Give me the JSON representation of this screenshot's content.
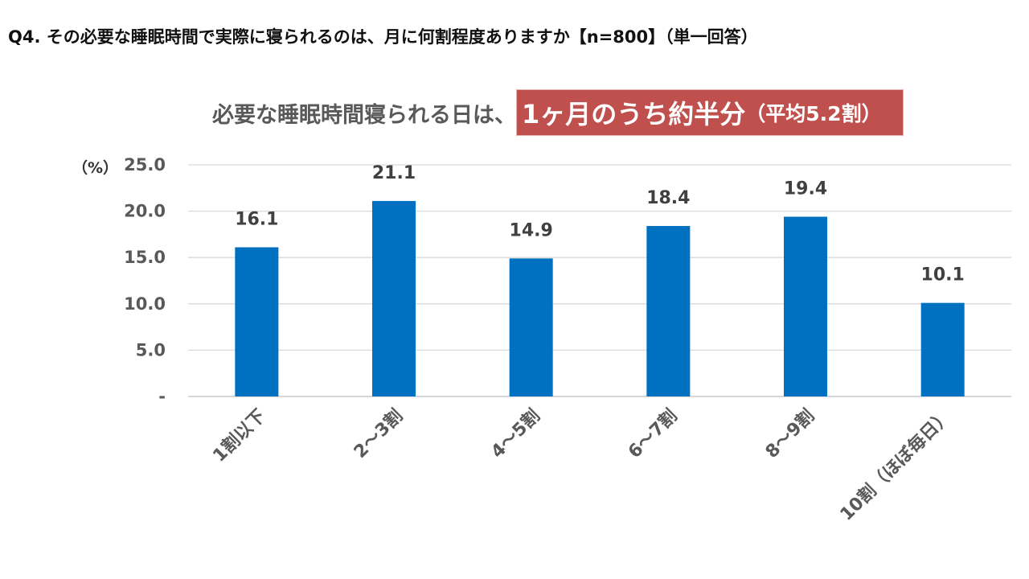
{
  "question": "Q4. その必要な睡眠時間で実際に寝られるのは、月に何割程度ありますか【n=800】（単一回答）",
  "headline": {
    "prefix": "必要な睡眠時間寝られる日は、",
    "highlight": "1ヶ月のうち約半分",
    "highlight_sub": "（平均5.2割）"
  },
  "colors": {
    "bar": "#0070c0",
    "highlight_bg": "#c0504d",
    "grid": "#d9d9d9"
  },
  "chart_data": {
    "type": "bar",
    "title": "必要な睡眠時間寝られる日は、1ヶ月のうち約半分（平均5.2割）",
    "ylabel": "（%）",
    "xlabel": "",
    "ylim": [
      0,
      25
    ],
    "yticks": [
      0,
      5,
      10,
      15,
      20,
      25
    ],
    "ytick_labels": [
      "-",
      "5.0",
      "10.0",
      "15.0",
      "20.0",
      "25.0"
    ],
    "grid": true,
    "categories": [
      "1割以下",
      "2～3割",
      "4～5割",
      "6～7割",
      "8～9割",
      "10割（ほぼ毎日）"
    ],
    "values": [
      16.1,
      21.1,
      14.9,
      18.4,
      19.4,
      10.1
    ],
    "value_labels": [
      "16.1",
      "21.1",
      "14.9",
      "18.4",
      "19.4",
      "10.1"
    ]
  }
}
